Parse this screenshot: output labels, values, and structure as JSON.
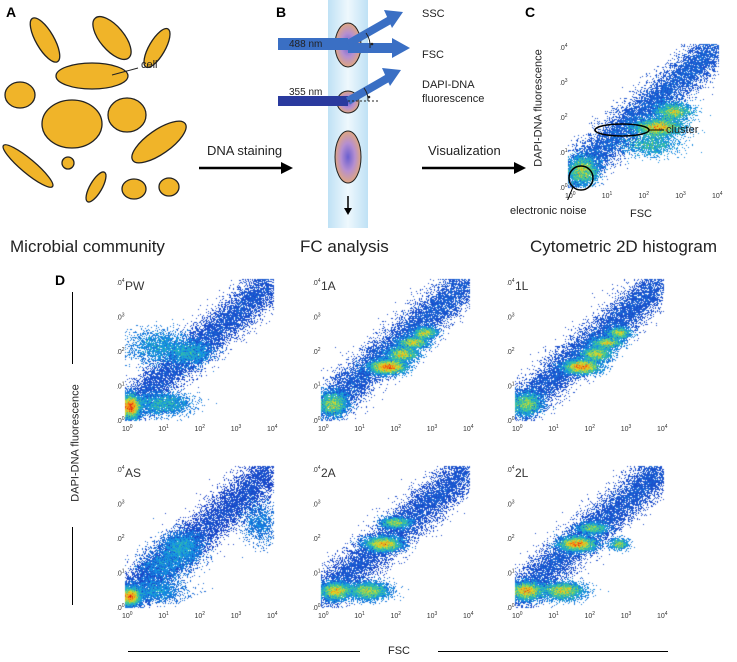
{
  "panels": {
    "a": {
      "letter": "A",
      "cell_label": "cell",
      "caption": "Microbial community"
    },
    "b": {
      "letter": "B",
      "ssc": "SSC",
      "fsc": "FSC",
      "laser_488": "488 nm",
      "laser_355": "355 nm",
      "fluor_line1": "DAPI-DNA",
      "fluor_line2": "fluorescence",
      "caption": "FC analysis"
    },
    "c": {
      "letter": "C",
      "ylabel": "DAPI-DNA fluorescence",
      "xlabel": "FSC",
      "cluster": "cluster",
      "noise": "electronic noise",
      "caption": "Cytometric 2D histogram"
    },
    "d": {
      "letter": "D",
      "ylabel": "DAPI-DNA fluorescence",
      "xlabel": "FSC"
    }
  },
  "arrows": {
    "staining": "DNA staining",
    "visualization": "Visualization"
  },
  "axis_ticks": {
    "exponents": [
      "0",
      "1",
      "2",
      "3",
      "4"
    ],
    "base": "10"
  },
  "histograms": [
    {
      "label": "PW"
    },
    {
      "label": "1A"
    },
    {
      "label": "1L"
    },
    {
      "label": "AS"
    },
    {
      "label": "2A"
    },
    {
      "label": "2L"
    }
  ],
  "colors": {
    "cell": "#f0b429",
    "beam": "#3a6fc4",
    "bg_dot": "#1f2fb8"
  }
}
